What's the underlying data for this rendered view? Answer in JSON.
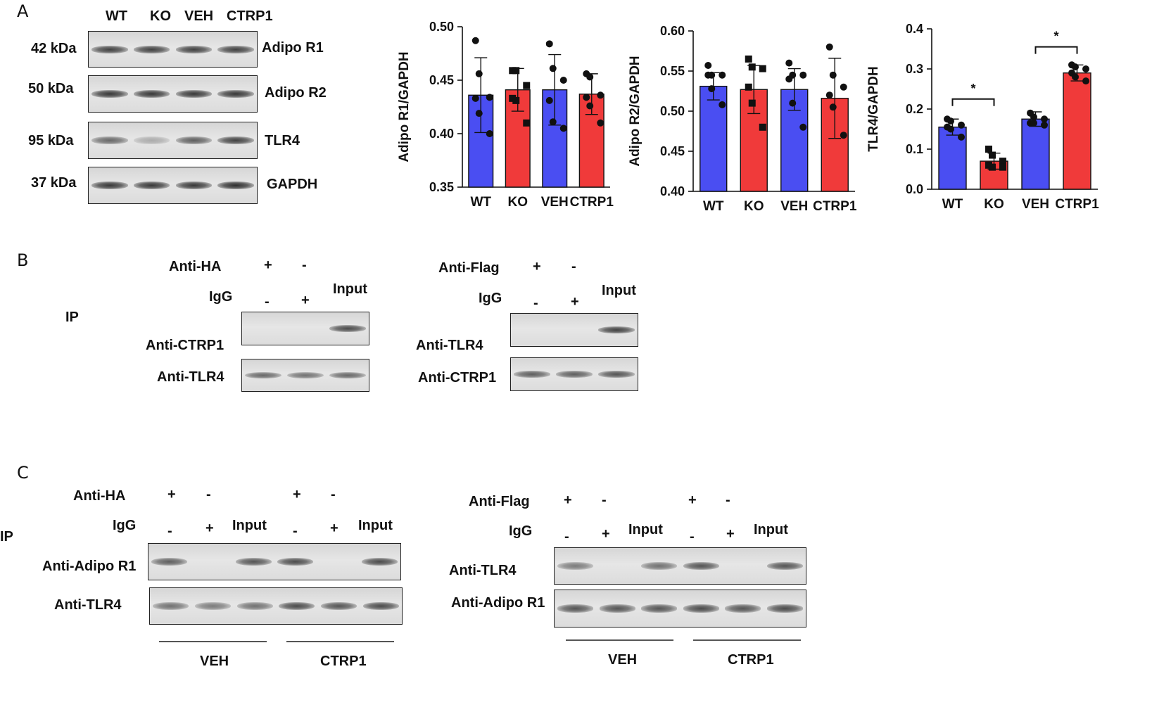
{
  "panel_labels": {
    "a": "A",
    "b": "B",
    "c": "C"
  },
  "colors": {
    "blue": "#4a4ef2",
    "red": "#f03a3a",
    "blot_bg": "#dedede",
    "band": "#222222"
  },
  "panelA": {
    "lanes": [
      "WT",
      "KO",
      "VEH",
      "CTRP1"
    ],
    "blots": [
      {
        "kda": "42 kDa",
        "name": "Adipo R1",
        "intensity": [
          0.85,
          0.85,
          0.85,
          0.85
        ]
      },
      {
        "kda": "50 kDa",
        "name": "Adipo R2",
        "intensity": [
          0.9,
          0.9,
          0.9,
          0.9
        ]
      },
      {
        "kda": "95 kDa",
        "name": "TLR4",
        "intensity": [
          0.65,
          0.3,
          0.7,
          0.85
        ]
      },
      {
        "kda": "37 kDa",
        "name": "GAPDH",
        "intensity": [
          0.9,
          0.9,
          0.9,
          0.95
        ]
      }
    ]
  },
  "chart_data": [
    {
      "type": "bar",
      "categories": [
        "WT",
        "KO",
        "VEH",
        "CTRP1"
      ],
      "values": [
        0.436,
        0.441,
        0.441,
        0.437
      ],
      "errors": [
        0.035,
        0.02,
        0.033,
        0.019
      ],
      "points": [
        [
          0.487,
          0.456,
          0.434,
          0.433,
          0.419,
          0.4
        ],
        [
          0.459,
          0.459,
          0.445,
          0.433,
          0.431,
          0.41
        ],
        [
          0.484,
          0.461,
          0.45,
          0.431,
          0.411,
          0.405
        ],
        [
          0.456,
          0.453,
          0.436,
          0.434,
          0.426,
          0.41
        ]
      ],
      "marker_shapes": [
        "circle",
        "square",
        "circle",
        "circle"
      ],
      "colors": [
        "#4a4ef2",
        "#f03a3a",
        "#4a4ef2",
        "#f03a3a"
      ],
      "ylabel": "Adipo R1/GAPDH",
      "ylim": [
        0.35,
        0.5
      ],
      "yticks": [
        "0.35",
        "0.40",
        "0.45",
        "0.50"
      ],
      "significance": []
    },
    {
      "type": "bar",
      "categories": [
        "WT",
        "KO",
        "VEH",
        "CTRP1"
      ],
      "values": [
        0.531,
        0.527,
        0.527,
        0.516
      ],
      "errors": [
        0.017,
        0.03,
        0.026,
        0.05
      ],
      "points": [
        [
          0.557,
          0.545,
          0.545,
          0.545,
          0.528,
          0.508
        ],
        [
          0.565,
          0.555,
          0.553,
          0.53,
          0.51,
          0.48
        ],
        [
          0.56,
          0.545,
          0.545,
          0.54,
          0.51,
          0.48
        ],
        [
          0.58,
          0.545,
          0.53,
          0.52,
          0.505,
          0.47
        ]
      ],
      "marker_shapes": [
        "circle",
        "square",
        "circle",
        "circle"
      ],
      "colors": [
        "#4a4ef2",
        "#f03a3a",
        "#4a4ef2",
        "#f03a3a"
      ],
      "ylabel": "Adipo R2/GAPDH",
      "ylim": [
        0.4,
        0.6
      ],
      "yticks": [
        "0.40",
        "0.45",
        "0.50",
        "0.55",
        "0.60"
      ],
      "significance": []
    },
    {
      "type": "bar",
      "categories": [
        "WT",
        "KO",
        "VEH",
        "CTRP1"
      ],
      "values": [
        0.155,
        0.07,
        0.175,
        0.29
      ],
      "errors": [
        0.02,
        0.02,
        0.018,
        0.02
      ],
      "points": [
        [
          0.175,
          0.17,
          0.16,
          0.155,
          0.15,
          0.13
        ],
        [
          0.1,
          0.085,
          0.07,
          0.06,
          0.055,
          0.055
        ],
        [
          0.19,
          0.18,
          0.175,
          0.165,
          0.165,
          0.16
        ],
        [
          0.31,
          0.305,
          0.3,
          0.29,
          0.28,
          0.27
        ]
      ],
      "marker_shapes": [
        "circle",
        "square",
        "circle",
        "circle"
      ],
      "colors": [
        "#4a4ef2",
        "#f03a3a",
        "#4a4ef2",
        "#f03a3a"
      ],
      "ylabel": "TLR4/GAPDH",
      "ylim": [
        0.0,
        0.4
      ],
      "yticks": [
        "0.0",
        "0.1",
        "0.2",
        "0.3",
        "0.4"
      ],
      "significance": [
        {
          "from": 0,
          "to": 1,
          "y": 0.225,
          "label": "*"
        },
        {
          "from": 2,
          "to": 3,
          "y": 0.355,
          "label": "*"
        }
      ]
    }
  ],
  "panelB": {
    "ip": "IP",
    "left": {
      "antibody": "Anti-HA",
      "antibody_signs": [
        "+",
        "-"
      ],
      "igg": "IgG",
      "igg_signs": [
        "-",
        "+"
      ],
      "input": "Input",
      "row1": "Anti-CTRP1",
      "row2": "Anti-TLR4",
      "row1_bands": [
        0,
        0,
        0.8
      ],
      "row2_bands": [
        0.65,
        0.6,
        0.65
      ]
    },
    "right": {
      "antibody": "Anti-Flag",
      "antibody_signs": [
        "+",
        "-"
      ],
      "igg": "IgG",
      "igg_signs": [
        "-",
        "+"
      ],
      "input": "Input",
      "row1": "Anti-TLR4",
      "row2": "Anti-CTRP1",
      "row1_bands": [
        0,
        0,
        0.85
      ],
      "row2_bands": [
        0.7,
        0.7,
        0.75
      ]
    }
  },
  "panelC": {
    "ip": "IP",
    "left": {
      "antibody": "Anti-HA",
      "antibody_signs": [
        "+",
        "-",
        "+",
        "-"
      ],
      "igg": "IgG",
      "igg_signs": [
        "-",
        "+",
        "Input",
        "-",
        "+",
        "Input"
      ],
      "row1": "Anti-Adipo R1",
      "row2": "Anti-TLR4",
      "row1_bands": [
        0.7,
        0,
        0.75,
        0.8,
        0,
        0.8
      ],
      "row2_bands": [
        0.6,
        0.55,
        0.6,
        0.8,
        0.75,
        0.8
      ],
      "groups": [
        "VEH",
        "CTRP1"
      ]
    },
    "right": {
      "antibody": "Anti-Flag",
      "antibody_signs": [
        "+",
        "-",
        "+",
        "-"
      ],
      "igg": "IgG",
      "igg_signs": [
        "-",
        "+",
        "Input",
        "-",
        "+",
        "Input"
      ],
      "row1": "Anti-TLR4",
      "row2": "Anti-Adipo R1",
      "row1_bands": [
        0.55,
        0,
        0.6,
        0.75,
        0,
        0.75
      ],
      "row2_bands": [
        0.75,
        0.75,
        0.75,
        0.8,
        0.75,
        0.8
      ],
      "groups": [
        "VEH",
        "CTRP1"
      ]
    }
  }
}
